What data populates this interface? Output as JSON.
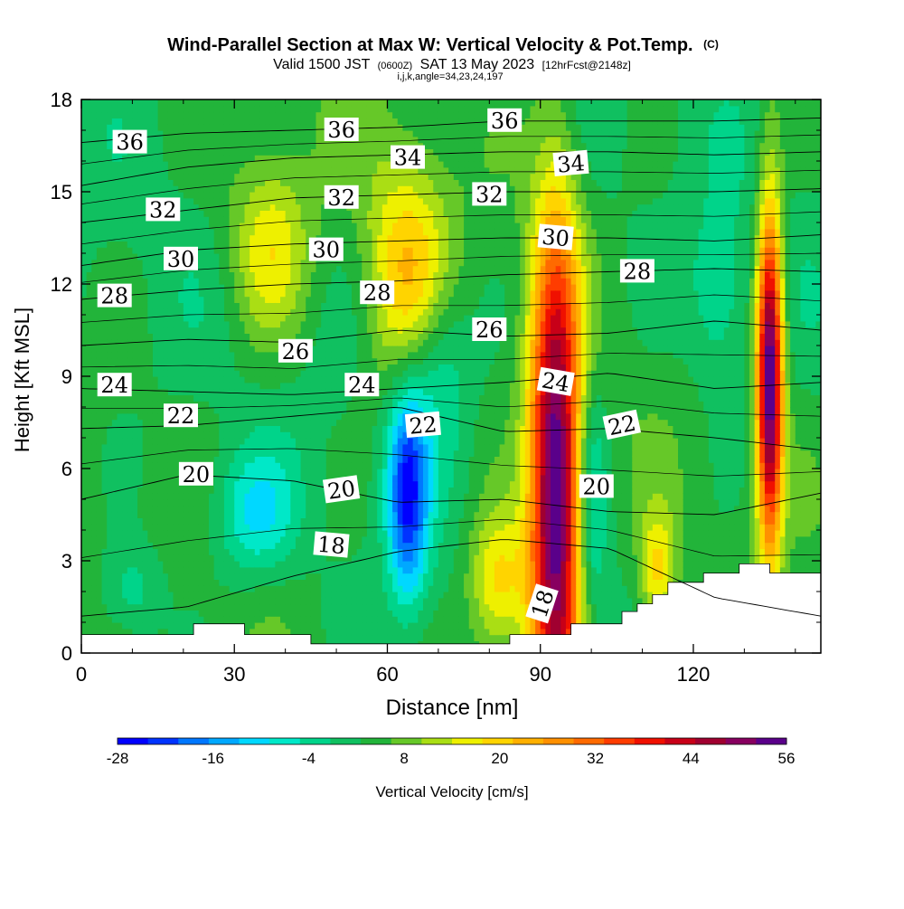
{
  "title": {
    "main": "Wind-Parallel Section at Max W: Vertical Velocity & Pot.Temp.",
    "main_tag": "(C)",
    "valid_prefix": "Valid 1500 JST",
    "valid_zulu": "(0600Z)",
    "valid_date": "SAT 13 May 2023",
    "valid_fcst": "[12hrFcst@2148z]",
    "indices": "i,j,k,angle=34,23,24,197"
  },
  "chart_data": {
    "type": "heatmap",
    "xlabel": "Distance [nm]",
    "ylabel": "Height [Kft MSL]",
    "xlim": [
      0,
      145
    ],
    "ylim": [
      0,
      18
    ],
    "x_ticks": [
      "0",
      "30",
      "60",
      "90",
      "120"
    ],
    "x_tick_values": [
      0,
      30,
      60,
      90,
      120
    ],
    "y_ticks": [
      "0",
      "3",
      "6",
      "9",
      "12",
      "15",
      "18"
    ],
    "y_tick_values": [
      0,
      3,
      6,
      9,
      12,
      15,
      18
    ],
    "grid": false,
    "colorbar": {
      "label": "Vertical Velocity [cm/s]",
      "range": [
        -28,
        56
      ],
      "labels": [
        "-28",
        "-16",
        "-4",
        "8",
        "20",
        "32",
        "44",
        "56"
      ],
      "label_values": [
        -28,
        -16,
        -4,
        8,
        20,
        32,
        44,
        56
      ],
      "colors": [
        "#0000ff",
        "#0033ff",
        "#0077ff",
        "#00a8ff",
        "#00d8ff",
        "#00e8c8",
        "#00d48a",
        "#10c060",
        "#22b43a",
        "#66c828",
        "#aade14",
        "#eef000",
        "#ffd400",
        "#ffb000",
        "#ff9000",
        "#ff6a00",
        "#ff3c00",
        "#f01000",
        "#c80018",
        "#a00030",
        "#880060",
        "#5a008a"
      ]
    },
    "terrain": [
      [
        0,
        0.6
      ],
      [
        22,
        0.6
      ],
      [
        22,
        0.95
      ],
      [
        32,
        0.95
      ],
      [
        32,
        0.6
      ],
      [
        45,
        0.6
      ],
      [
        45,
        0.3
      ],
      [
        84,
        0.3
      ],
      [
        84,
        0.6
      ],
      [
        96,
        0.6
      ],
      [
        96,
        0.95
      ],
      [
        106,
        0.95
      ],
      [
        106,
        1.35
      ],
      [
        109,
        1.35
      ],
      [
        109,
        1.6
      ],
      [
        112,
        1.6
      ],
      [
        112,
        1.9
      ],
      [
        115,
        1.9
      ],
      [
        115,
        2.3
      ],
      [
        122,
        2.3
      ],
      [
        122,
        2.6
      ],
      [
        129,
        2.6
      ],
      [
        129,
        2.9
      ],
      [
        135,
        2.9
      ],
      [
        135,
        2.6
      ],
      [
        145,
        2.6
      ]
    ],
    "updrafts": [
      {
        "x": 93,
        "y": 5,
        "w": 54,
        "rx": 5,
        "ry": 9
      },
      {
        "x": 135,
        "y": 9,
        "w": 54,
        "rx": 2.5,
        "ry": 5.5
      },
      {
        "x": 64,
        "y": 12.3,
        "w": 18,
        "rx": 8,
        "ry": 3.8
      },
      {
        "x": 37,
        "y": 13.2,
        "w": 14,
        "rx": 8,
        "ry": 3
      },
      {
        "x": 82,
        "y": 2.2,
        "w": 18,
        "rx": 6,
        "ry": 2.5
      },
      {
        "x": 113,
        "y": 2.6,
        "w": 16,
        "rx": 3.5,
        "ry": 2
      }
    ],
    "downdrafts": [
      {
        "x": 64,
        "y": 5.2,
        "w": -26,
        "rx": 4,
        "ry": 3.5
      },
      {
        "x": 34,
        "y": 4.5,
        "w": -12,
        "rx": 8,
        "ry": 2
      },
      {
        "x": 100,
        "y": 5,
        "w": -12,
        "rx": 3,
        "ry": 4
      },
      {
        "x": 70,
        "y": 9.5,
        "w": -10,
        "rx": 6,
        "ry": 3
      },
      {
        "x": 10,
        "y": 2,
        "w": -8,
        "rx": 6,
        "ry": 1.6
      },
      {
        "x": 125,
        "y": 11.5,
        "w": -8,
        "rx": 6,
        "ry": 3
      }
    ],
    "theta_contours": [
      {
        "value": 18,
        "heights": [
          1.2,
          1.5,
          2.5,
          3.3,
          3.7,
          3.4,
          1.8,
          1.2
        ]
      },
      {
        "value": 20,
        "heights": [
          5.0,
          5.8,
          5.6,
          4.9,
          5.0,
          4.6,
          4.5,
          5.2
        ]
      },
      {
        "value": 22,
        "heights": [
          7.3,
          7.4,
          7.7,
          8.0,
          7.2,
          7.3,
          7.0,
          6.6
        ]
      },
      {
        "value": 24,
        "heights": [
          8.6,
          8.5,
          8.4,
          8.6,
          8.8,
          9.1,
          8.6,
          8.8
        ]
      },
      {
        "value": 26,
        "heights": [
          10.0,
          10.2,
          10.1,
          10.5,
          10.3,
          10.4,
          10.8,
          10.5
        ]
      },
      {
        "value": 28,
        "heights": [
          11.5,
          11.8,
          12.0,
          12.1,
          12.3,
          12.4,
          12.5,
          12.4
        ]
      },
      {
        "value": 30,
        "heights": [
          12.6,
          13.1,
          13.3,
          13.4,
          13.5,
          13.5,
          13.4,
          13.6
        ]
      },
      {
        "value": 32,
        "heights": [
          14.0,
          14.4,
          14.8,
          14.9,
          15.0,
          15.0,
          15.0,
          15.1
        ]
      },
      {
        "value": 34,
        "heights": [
          15.2,
          15.8,
          16.1,
          16.2,
          16.3,
          16.3,
          16.2,
          16.3
        ]
      },
      {
        "value": 36,
        "heights": [
          16.6,
          16.9,
          17.0,
          17.1,
          17.3,
          17.3,
          17.3,
          17.4
        ]
      }
    ],
    "contour_labels": [
      {
        "text": "36",
        "x": 9.5,
        "y": 16.6,
        "rot": 0
      },
      {
        "text": "36",
        "x": 51,
        "y": 17.0,
        "rot": 0
      },
      {
        "text": "36",
        "x": 83,
        "y": 17.3,
        "rot": 0
      },
      {
        "text": "34",
        "x": 64,
        "y": 16.1,
        "rot": 0
      },
      {
        "text": "34",
        "x": 96,
        "y": 15.9,
        "rot": -5
      },
      {
        "text": "32",
        "x": 16,
        "y": 14.4,
        "rot": 0
      },
      {
        "text": "32",
        "x": 51,
        "y": 14.8,
        "rot": 0
      },
      {
        "text": "32",
        "x": 80,
        "y": 14.9,
        "rot": 0
      },
      {
        "text": "30",
        "x": 19.5,
        "y": 12.8,
        "rot": 0
      },
      {
        "text": "30",
        "x": 48,
        "y": 13.1,
        "rot": 0
      },
      {
        "text": "30",
        "x": 93,
        "y": 13.5,
        "rot": 5
      },
      {
        "text": "28",
        "x": 6.5,
        "y": 11.6,
        "rot": 0
      },
      {
        "text": "28",
        "x": 58,
        "y": 11.7,
        "rot": 0
      },
      {
        "text": "28",
        "x": 109,
        "y": 12.4,
        "rot": 0
      },
      {
        "text": "26",
        "x": 42,
        "y": 9.8,
        "rot": 0
      },
      {
        "text": "26",
        "x": 80,
        "y": 10.5,
        "rot": 0
      },
      {
        "text": "24",
        "x": 6.5,
        "y": 8.7,
        "rot": 0
      },
      {
        "text": "24",
        "x": 55,
        "y": 8.7,
        "rot": 0
      },
      {
        "text": "24",
        "x": 93,
        "y": 8.8,
        "rot": 10
      },
      {
        "text": "22",
        "x": 19.5,
        "y": 7.7,
        "rot": 0
      },
      {
        "text": "22",
        "x": 67,
        "y": 7.4,
        "rot": -5
      },
      {
        "text": "22",
        "x": 106,
        "y": 7.4,
        "rot": -12
      },
      {
        "text": "20",
        "x": 22.5,
        "y": 5.8,
        "rot": 0
      },
      {
        "text": "20",
        "x": 51,
        "y": 5.3,
        "rot": -8
      },
      {
        "text": "20",
        "x": 101,
        "y": 5.4,
        "rot": 0
      },
      {
        "text": "18",
        "x": 49,
        "y": 3.5,
        "rot": 5
      },
      {
        "text": "18",
        "x": 90.5,
        "y": 1.6,
        "rot": -72
      }
    ]
  }
}
